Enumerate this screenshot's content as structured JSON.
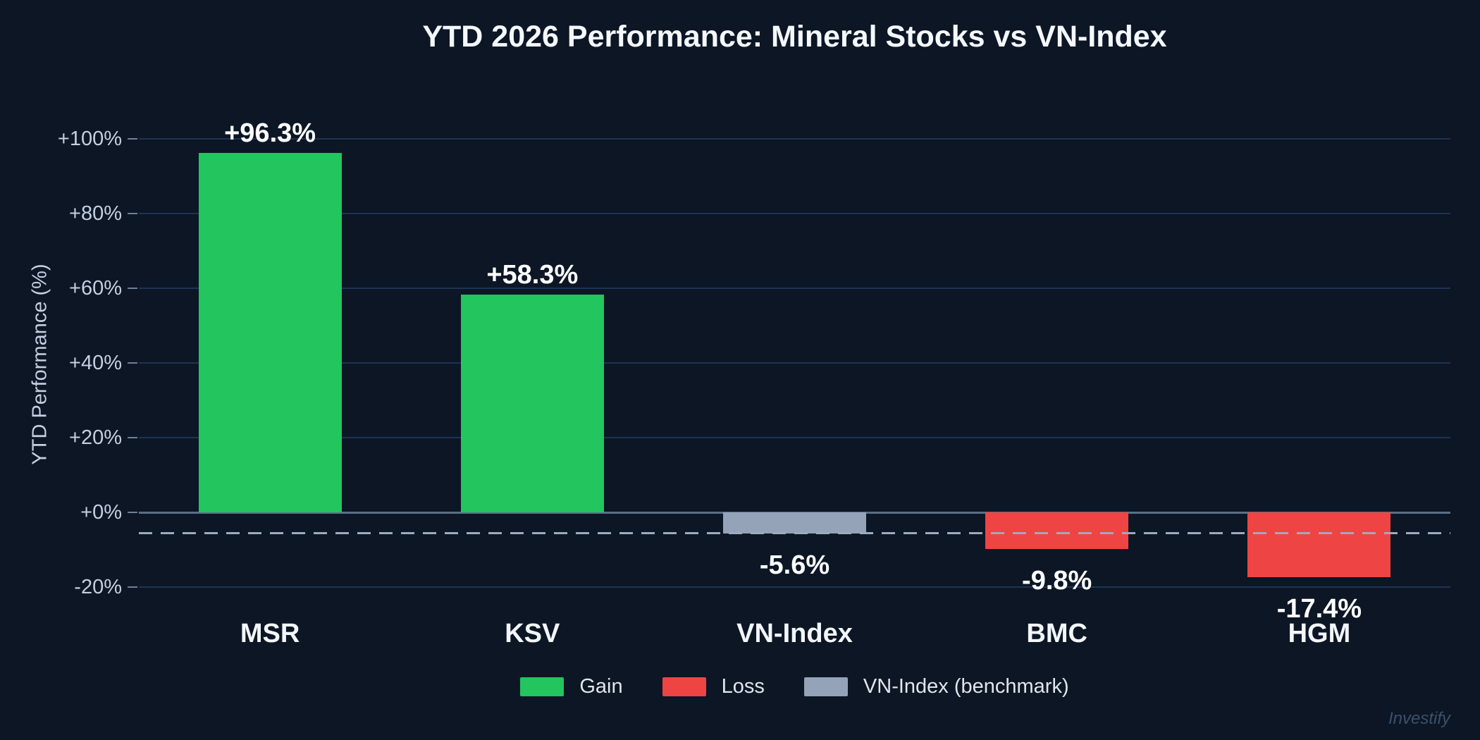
{
  "watermark": "Investify",
  "chart_data": {
    "type": "bar",
    "title": "YTD 2026 Performance: Mineral Stocks vs VN-Index",
    "xlabel": "",
    "ylabel": "YTD Performance (%)",
    "categories": [
      "MSR",
      "KSV",
      "VN-Index",
      "BMC",
      "HGM"
    ],
    "values": [
      96.3,
      58.3,
      -5.6,
      -9.8,
      -17.4
    ],
    "bar_labels": [
      "+96.3%",
      "+58.3%",
      "-5.6%",
      "-9.8%",
      "-17.4%"
    ],
    "bar_roles": [
      "gain",
      "gain",
      "benchmark",
      "loss",
      "loss"
    ],
    "y_ticks": [
      {
        "value": 100,
        "label": "+100%"
      },
      {
        "value": 80,
        "label": "+80%"
      },
      {
        "value": 60,
        "label": "+60%"
      },
      {
        "value": 40,
        "label": "+40%"
      },
      {
        "value": 20,
        "label": "+20%"
      },
      {
        "value": 0,
        "label": "+0%"
      },
      {
        "value": -20,
        "label": "-20%"
      }
    ],
    "ylim": [
      -27,
      112
    ],
    "grid": true,
    "benchmark_line_value": -5.6,
    "colors": {
      "gain": "#22c55e",
      "loss": "#ef4444",
      "benchmark": "#94a3b8",
      "background": "#0c1625",
      "gridline": "#1d3356",
      "zero_line": "#5c6e84",
      "benchmark_line": "#9dabbd",
      "tick_text": "#c4cfdf",
      "title_text": "#f5f8fc",
      "value_label_text": "#ffffff"
    },
    "legend": {
      "position": "bottom",
      "items": [
        {
          "label": "Gain",
          "role": "gain"
        },
        {
          "label": "Loss",
          "role": "loss"
        },
        {
          "label": "VN-Index (benchmark)",
          "role": "benchmark"
        }
      ]
    }
  }
}
